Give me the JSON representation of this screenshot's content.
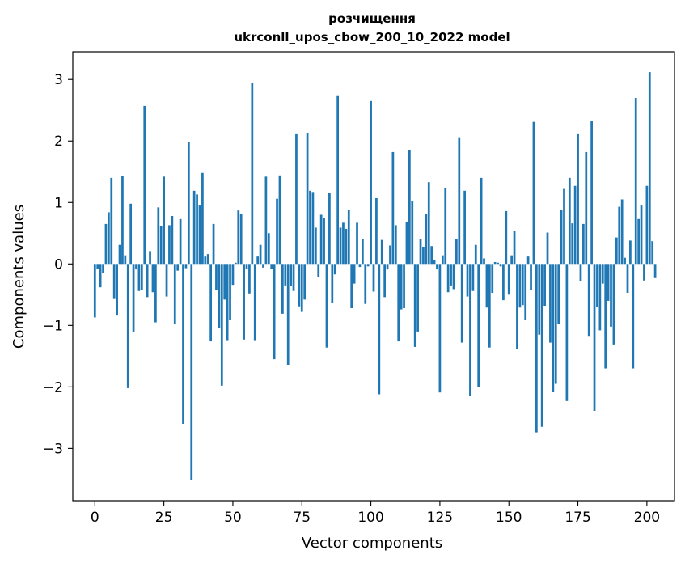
{
  "chart_data": {
    "type": "bar",
    "title": "розчищення",
    "subtitle": "ukrconll_upos_cbow_200_10_2022 model",
    "xlabel": "Vector components",
    "ylabel": "Components values",
    "xlim": [
      -8,
      210
    ],
    "ylim": [
      -3.85,
      3.45
    ],
    "xticks": [
      0,
      25,
      50,
      75,
      100,
      125,
      150,
      175,
      200
    ],
    "yticks": [
      -3,
      -2,
      -1,
      0,
      1,
      2,
      3
    ],
    "ytick_labels": [
      "−3",
      "−2",
      "−1",
      "0",
      "1",
      "2",
      "3"
    ],
    "bar_color": "#1f77b4",
    "grid": false,
    "legend": "none",
    "values": [
      -0.87,
      -0.08,
      -0.38,
      -0.15,
      0.65,
      0.84,
      1.4,
      -0.57,
      -0.84,
      0.31,
      1.43,
      0.14,
      -2.02,
      0.98,
      -1.1,
      -0.09,
      -0.44,
      -0.42,
      2.57,
      -0.54,
      0.21,
      -0.46,
      -0.95,
      0.92,
      0.61,
      1.42,
      -0.53,
      0.63,
      0.78,
      -0.97,
      -0.11,
      0.73,
      -2.6,
      -0.07,
      1.98,
      -3.51,
      1.19,
      1.13,
      0.95,
      1.48,
      0.12,
      0.16,
      -1.26,
      0.65,
      -0.43,
      -1.04,
      -1.98,
      -0.58,
      -1.24,
      -0.91,
      -0.34,
      0.02,
      0.87,
      0.82,
      -1.23,
      -0.08,
      -0.48,
      2.95,
      -1.24,
      0.12,
      0.31,
      -0.06,
      1.42,
      0.5,
      -0.08,
      -1.55,
      1.06,
      1.44,
      -0.81,
      -0.35,
      -1.64,
      -0.36,
      -0.44,
      2.11,
      -0.69,
      -0.78,
      -0.58,
      2.13,
      1.19,
      1.17,
      0.59,
      -0.22,
      0.8,
      0.74,
      -1.36,
      1.16,
      -0.63,
      -0.17,
      2.73,
      0.59,
      0.67,
      0.57,
      0.88,
      -0.72,
      -0.32,
      0.67,
      -0.05,
      0.41,
      -0.65,
      -0.04,
      2.65,
      -0.45,
      1.07,
      -2.12,
      0.39,
      -0.54,
      -0.09,
      0.3,
      1.82,
      0.63,
      -1.26,
      -0.74,
      -0.72,
      0.68,
      1.85,
      1.03,
      -1.35,
      -1.1,
      0.4,
      0.28,
      0.82,
      1.33,
      0.29,
      0.07,
      -0.09,
      -2.09,
      0.14,
      1.23,
      -0.46,
      -0.35,
      -0.41,
      0.41,
      2.06,
      -1.28,
      1.19,
      -0.53,
      -2.14,
      -0.44,
      0.31,
      -2.0,
      1.4,
      0.09,
      -0.71,
      -1.36,
      -0.47,
      0.03,
      0.02,
      -0.04,
      -0.59,
      0.86,
      -0.5,
      0.14,
      0.54,
      -1.39,
      -0.71,
      -0.67,
      -0.91,
      0.12,
      -0.42,
      2.31,
      -2.74,
      -1.15,
      -2.65,
      -0.68,
      0.51,
      -1.28,
      -2.08,
      -1.95,
      -0.98,
      0.88,
      1.22,
      -2.23,
      1.4,
      0.66,
      1.27,
      2.11,
      -0.28,
      0.65,
      1.82,
      -1.17,
      2.33,
      -2.39,
      -0.7,
      -1.08,
      -0.32,
      -1.7,
      -0.6,
      -1.02,
      -1.31,
      0.43,
      0.93,
      1.05,
      0.1,
      -0.47,
      0.38,
      -1.7,
      2.7,
      0.73,
      0.95,
      -0.27,
      1.27,
      3.12,
      0.37,
      -0.23
    ]
  }
}
